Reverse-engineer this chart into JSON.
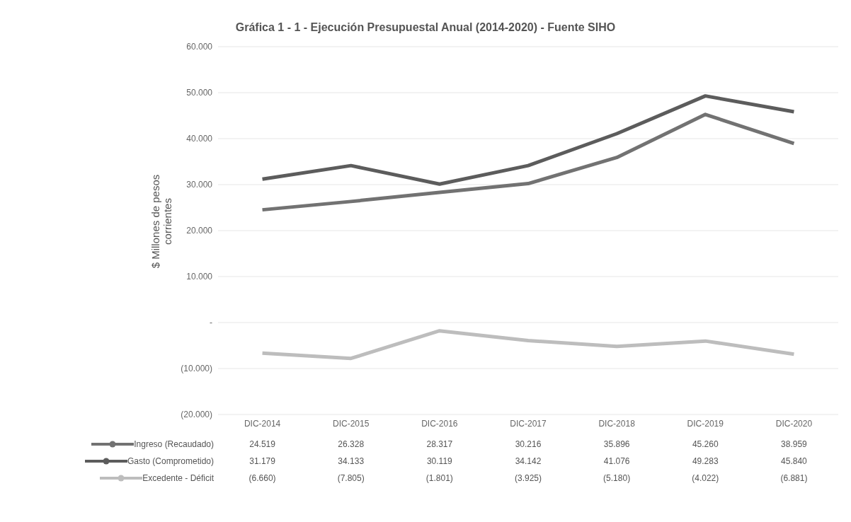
{
  "chart_data": {
    "type": "line",
    "title": "Gráfica 1 - 1 - Ejecución Presupuestal Anual (2014-2020) - Fuente SIHO",
    "ylabel": "$ Millones de pesos corrientes",
    "categories": [
      "DIC-2014",
      "DIC-2015",
      "DIC-2016",
      "DIC-2017",
      "DIC-2018",
      "DIC-2019",
      "DIC-2020"
    ],
    "series": [
      {
        "name": "Ingreso (Recaudado)",
        "color": "#727272",
        "values": [
          24519,
          26328,
          28317,
          30216,
          35896,
          45260,
          38959
        ],
        "value_labels": [
          "24.519",
          "26.328",
          "28.317",
          "30.216",
          "35.896",
          "45.260",
          "38.959"
        ]
      },
      {
        "name": "Gasto (Comprometido)",
        "color": "#5c5c5c",
        "values": [
          31179,
          34133,
          30119,
          34142,
          41076,
          49283,
          45840
        ],
        "value_labels": [
          "31.179",
          "34.133",
          "30.119",
          "34.142",
          "41.076",
          "49.283",
          "45.840"
        ]
      },
      {
        "name": "Excedente - Déficit",
        "color": "#bdbdbd",
        "values": [
          -6660,
          -7805,
          -1801,
          -3925,
          -5180,
          -4022,
          -6881
        ],
        "value_labels": [
          "(6.660)",
          "(7.805)",
          "(1.801)",
          "(3.925)",
          "(5.180)",
          "(4.022)",
          "(6.881)"
        ]
      }
    ],
    "ylim": [
      -20000,
      60000
    ],
    "yticks": [
      {
        "value": -20000,
        "label": "(20.000)"
      },
      {
        "value": -10000,
        "label": "(10.000)"
      },
      {
        "value": 0,
        "label": "-"
      },
      {
        "value": 10000,
        "label": "10.000"
      },
      {
        "value": 20000,
        "label": "20.000"
      },
      {
        "value": 30000,
        "label": "30.000"
      },
      {
        "value": 40000,
        "label": "40.000"
      },
      {
        "value": 50000,
        "label": "50.000"
      },
      {
        "value": 60000,
        "label": "60.000"
      }
    ],
    "grid": "y",
    "legend": "bottom",
    "line_style": "solid"
  }
}
